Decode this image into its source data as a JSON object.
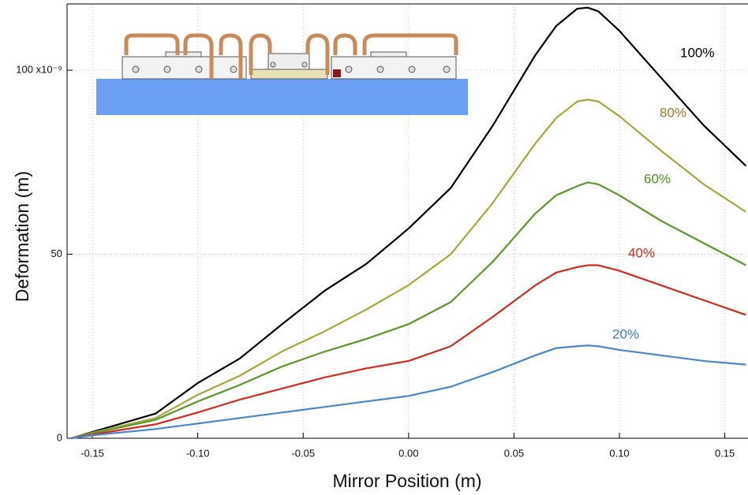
{
  "chart_data": {
    "type": "line",
    "x_label": "Mirror Position (m)",
    "y_label": "Deformation (m)",
    "x": [
      -0.16,
      -0.15,
      -0.12,
      -0.1,
      -0.08,
      -0.06,
      -0.04,
      -0.02,
      0,
      0.02,
      0.04,
      0.06,
      0.07,
      0.08,
      0.085,
      0.09,
      0.1,
      0.12,
      0.14,
      0.16
    ],
    "series": [
      {
        "name": "100%",
        "color": "#000000",
        "label_color": "#000000",
        "values": [
          0,
          1.7,
          6.7,
          15,
          21.7,
          31,
          40,
          47.4,
          57,
          68,
          85,
          104,
          112,
          116.7,
          117,
          116,
          110.7,
          97.8,
          85,
          74
        ]
      },
      {
        "name": "80%",
        "color": "#aaa63a",
        "label_color": "#9c7a22",
        "values": [
          0,
          1.5,
          5.5,
          11.8,
          17,
          23.6,
          29,
          35,
          41.6,
          50,
          64,
          80,
          87,
          91.5,
          92,
          91.5,
          87.5,
          78,
          69,
          61.5
        ]
      },
      {
        "name": "60%",
        "color": "#5a9a2a",
        "label_color": "#4f8f22",
        "values": [
          0,
          1.3,
          5,
          10,
          14.5,
          19.5,
          23.5,
          27,
          31,
          37,
          48,
          61,
          66,
          68.5,
          69.5,
          69,
          66,
          59,
          53,
          47
        ]
      },
      {
        "name": "40%",
        "color": "#d8281e",
        "label_color": "#d8281e",
        "values": [
          0,
          1,
          3.8,
          7,
          10.5,
          13.5,
          16.5,
          19,
          21,
          25,
          33,
          41.5,
          45,
          46.5,
          47,
          47,
          45.5,
          41.5,
          37.5,
          33.5
        ]
      },
      {
        "name": "20%",
        "color": "#4a86cc",
        "label_color": "#3f7cc4",
        "values": [
          0,
          0.8,
          2.5,
          4,
          5.5,
          7,
          8.5,
          10,
          11.5,
          14,
          18,
          22.5,
          24.5,
          25,
          25.2,
          25,
          24,
          22.5,
          21,
          20
        ]
      }
    ],
    "xlim": [
      -0.162,
      0.161
    ],
    "ylim": [
      0,
      118
    ],
    "xticks": [
      -0.15,
      {
        "value": -0.1,
        "label": "-0.10"
      },
      -0.05,
      {
        "value": 0,
        "label": "0.00"
      },
      0.05,
      {
        "value": 0.1,
        "label": "0.10"
      },
      0.15
    ],
    "yticks": [
      0,
      50,
      {
        "value": 100,
        "label": "100 x10⁻⁹"
      }
    ],
    "grid": true
  }
}
